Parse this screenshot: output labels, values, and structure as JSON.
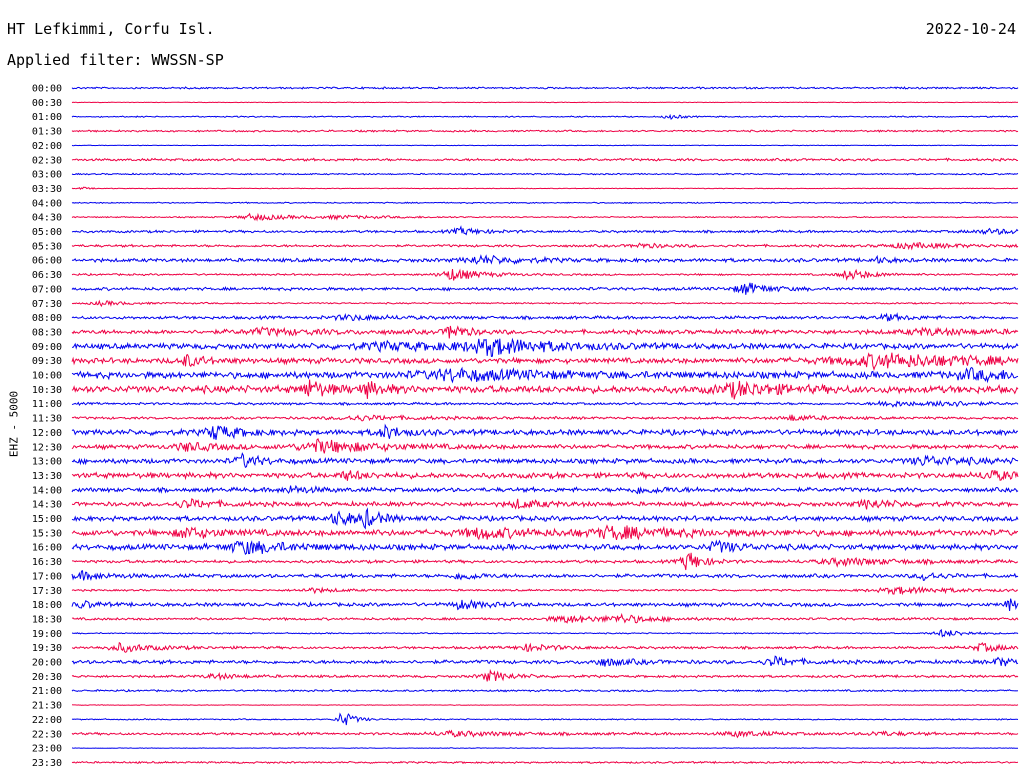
{
  "header": {
    "station": "HT Lefkimmi, Corfu Isl.",
    "date": "2022-10-24",
    "filter": "Applied filter: WWSSN-SP"
  },
  "channel_label": "EHZ - 5000",
  "colors": {
    "trace_a": "#0000ee",
    "trace_b": "#ee0044"
  },
  "chart_data": {
    "type": "line",
    "title": "HT Lefkimmi, Corfu Isl.",
    "subtitle": "Applied filter: WWSSN-SP",
    "date": "2022-10-24",
    "ylabel": "EHZ - 5000",
    "rows": [
      {
        "label": "00:00",
        "color": "blue",
        "noise": 0.15,
        "events": []
      },
      {
        "label": "00:30",
        "color": "red",
        "noise": 0.05,
        "events": []
      },
      {
        "label": "01:00",
        "color": "blue",
        "noise": 0.1,
        "events": [
          {
            "t": 0.63,
            "a": 0.45,
            "w": 0.004
          }
        ]
      },
      {
        "label": "01:30",
        "color": "red",
        "noise": 0.15,
        "events": []
      },
      {
        "label": "02:00",
        "color": "blue",
        "noise": 0.05,
        "events": []
      },
      {
        "label": "02:30",
        "color": "red",
        "noise": 0.2,
        "events": []
      },
      {
        "label": "03:00",
        "color": "blue",
        "noise": 0.12,
        "events": []
      },
      {
        "label": "03:30",
        "color": "red",
        "noise": 0.05,
        "events": [
          {
            "t": 0.01,
            "a": 0.2,
            "w": 0.003
          }
        ]
      },
      {
        "label": "04:00",
        "color": "blue",
        "noise": 0.1,
        "events": []
      },
      {
        "label": "04:30",
        "color": "red",
        "noise": 0.1,
        "events": [
          {
            "t": 0.19,
            "a": 0.5,
            "w": 0.012
          },
          {
            "t": 0.28,
            "a": 0.2,
            "w": 0.02
          }
        ]
      },
      {
        "label": "05:00",
        "color": "blue",
        "noise": 0.2,
        "events": [
          {
            "t": 0.41,
            "a": 0.5,
            "w": 0.008
          },
          {
            "t": 0.97,
            "a": 0.3,
            "w": 0.02
          }
        ]
      },
      {
        "label": "05:30",
        "color": "red",
        "noise": 0.2,
        "events": [
          {
            "t": 0.6,
            "a": 0.3,
            "w": 0.01
          },
          {
            "t": 0.88,
            "a": 0.35,
            "w": 0.02
          }
        ]
      },
      {
        "label": "06:00",
        "color": "blue",
        "noise": 0.3,
        "events": [
          {
            "t": 0.43,
            "a": 0.55,
            "w": 0.015
          },
          {
            "t": 0.85,
            "a": 0.35,
            "w": 0.006
          }
        ]
      },
      {
        "label": "06:30",
        "color": "red",
        "noise": 0.15,
        "events": [
          {
            "t": 0.4,
            "a": 0.9,
            "w": 0.01
          },
          {
            "t": 0.82,
            "a": 0.8,
            "w": 0.008
          }
        ]
      },
      {
        "label": "07:00",
        "color": "blue",
        "noise": 0.25,
        "events": [
          {
            "t": 0.71,
            "a": 0.9,
            "w": 0.008
          }
        ]
      },
      {
        "label": "07:30",
        "color": "red",
        "noise": 0.12,
        "events": [
          {
            "t": 0.03,
            "a": 0.3,
            "w": 0.01
          }
        ]
      },
      {
        "label": "08:00",
        "color": "blue",
        "noise": 0.25,
        "events": [
          {
            "t": 0.29,
            "a": 0.35,
            "w": 0.015
          },
          {
            "t": 0.86,
            "a": 0.45,
            "w": 0.008
          }
        ]
      },
      {
        "label": "08:30",
        "color": "red",
        "noise": 0.35,
        "events": [
          {
            "t": 0.4,
            "a": 1.1,
            "w": 0.005
          },
          {
            "t": 0.2,
            "a": 0.4,
            "w": 0.02
          },
          {
            "t": 0.9,
            "a": 0.4,
            "w": 0.02
          }
        ]
      },
      {
        "label": "09:00",
        "color": "blue",
        "noise": 0.45,
        "events": [
          {
            "t": 0.44,
            "a": 1.1,
            "w": 0.02
          },
          {
            "t": 0.33,
            "a": 0.45,
            "w": 0.03
          }
        ]
      },
      {
        "label": "09:30",
        "color": "red",
        "noise": 0.45,
        "events": [
          {
            "t": 0.12,
            "a": 0.8,
            "w": 0.006
          },
          {
            "t": 0.85,
            "a": 0.9,
            "w": 0.04
          }
        ]
      },
      {
        "label": "10:00",
        "color": "blue",
        "noise": 0.55,
        "events": [
          {
            "t": 0.4,
            "a": 0.7,
            "w": 0.03
          },
          {
            "t": 0.95,
            "a": 0.6,
            "w": 0.02
          }
        ]
      },
      {
        "label": "10:30",
        "color": "red",
        "noise": 0.6,
        "events": [
          {
            "t": 0.25,
            "a": 1.2,
            "w": 0.006
          },
          {
            "t": 0.31,
            "a": 0.9,
            "w": 0.006
          },
          {
            "t": 0.7,
            "a": 0.9,
            "w": 0.015
          }
        ]
      },
      {
        "label": "11:00",
        "color": "blue",
        "noise": 0.2,
        "events": [
          {
            "t": 0.86,
            "a": 0.45,
            "w": 0.01
          },
          {
            "t": 0.92,
            "a": 0.5,
            "w": 0.008
          }
        ]
      },
      {
        "label": "11:30",
        "color": "red",
        "noise": 0.2,
        "events": [
          {
            "t": 0.3,
            "a": 0.35,
            "w": 0.02
          },
          {
            "t": 0.76,
            "a": 0.4,
            "w": 0.01
          }
        ]
      },
      {
        "label": "12:00",
        "color": "blue",
        "noise": 0.45,
        "events": [
          {
            "t": 0.15,
            "a": 1.0,
            "w": 0.008
          },
          {
            "t": 0.33,
            "a": 0.9,
            "w": 0.006
          }
        ]
      },
      {
        "label": "12:30",
        "color": "red",
        "noise": 0.35,
        "events": [
          {
            "t": 0.26,
            "a": 0.9,
            "w": 0.02
          },
          {
            "t": 0.12,
            "a": 0.6,
            "w": 0.01
          }
        ]
      },
      {
        "label": "13:00",
        "color": "blue",
        "noise": 0.4,
        "events": [
          {
            "t": 0.18,
            "a": 0.9,
            "w": 0.006
          },
          {
            "t": 0.9,
            "a": 0.6,
            "w": 0.015
          }
        ]
      },
      {
        "label": "13:30",
        "color": "red",
        "noise": 0.45,
        "events": [
          {
            "t": 0.29,
            "a": 0.6,
            "w": 0.006
          },
          {
            "t": 0.97,
            "a": 0.6,
            "w": 0.01
          }
        ]
      },
      {
        "label": "14:00",
        "color": "blue",
        "noise": 0.35,
        "events": [
          {
            "t": 0.23,
            "a": 0.5,
            "w": 0.008
          },
          {
            "t": 0.6,
            "a": 0.45,
            "w": 0.01
          }
        ]
      },
      {
        "label": "14:30",
        "color": "red",
        "noise": 0.35,
        "events": [
          {
            "t": 0.12,
            "a": 0.6,
            "w": 0.01
          },
          {
            "t": 0.47,
            "a": 0.55,
            "w": 0.01
          },
          {
            "t": 0.84,
            "a": 0.6,
            "w": 0.01
          }
        ]
      },
      {
        "label": "15:00",
        "color": "blue",
        "noise": 0.4,
        "events": [
          {
            "t": 0.28,
            "a": 0.9,
            "w": 0.008
          },
          {
            "t": 0.31,
            "a": 1.0,
            "w": 0.005
          }
        ]
      },
      {
        "label": "15:30",
        "color": "red",
        "noise": 0.5,
        "events": [
          {
            "t": 0.12,
            "a": 0.7,
            "w": 0.01
          },
          {
            "t": 0.43,
            "a": 0.7,
            "w": 0.015
          },
          {
            "t": 0.57,
            "a": 0.8,
            "w": 0.02
          }
        ]
      },
      {
        "label": "16:00",
        "color": "blue",
        "noise": 0.45,
        "events": [
          {
            "t": 0.18,
            "a": 0.9,
            "w": 0.015
          },
          {
            "t": 0.68,
            "a": 0.8,
            "w": 0.008
          }
        ]
      },
      {
        "label": "16:30",
        "color": "red",
        "noise": 0.25,
        "events": [
          {
            "t": 0.65,
            "a": 1.6,
            "w": 0.005
          },
          {
            "t": 0.81,
            "a": 0.5,
            "w": 0.02
          }
        ]
      },
      {
        "label": "17:00",
        "color": "blue",
        "noise": 0.3,
        "events": [
          {
            "t": 0.01,
            "a": 0.5,
            "w": 0.01
          },
          {
            "t": 0.41,
            "a": 0.6,
            "w": 0.006
          },
          {
            "t": 0.9,
            "a": 0.6,
            "w": 0.006
          }
        ]
      },
      {
        "label": "17:30",
        "color": "red",
        "noise": 0.15,
        "events": [
          {
            "t": 0.25,
            "a": 0.35,
            "w": 0.01
          },
          {
            "t": 0.87,
            "a": 0.5,
            "w": 0.02
          }
        ]
      },
      {
        "label": "18:00",
        "color": "blue",
        "noise": 0.3,
        "events": [
          {
            "t": 0.01,
            "a": 0.5,
            "w": 0.005
          },
          {
            "t": 0.41,
            "a": 0.65,
            "w": 0.008
          },
          {
            "t": 0.99,
            "a": 0.8,
            "w": 0.004
          }
        ]
      },
      {
        "label": "18:30",
        "color": "red",
        "noise": 0.2,
        "events": [
          {
            "t": 0.52,
            "a": 0.5,
            "w": 0.015
          },
          {
            "t": 0.58,
            "a": 0.5,
            "w": 0.01
          }
        ]
      },
      {
        "label": "19:00",
        "color": "blue",
        "noise": 0.1,
        "events": [
          {
            "t": 0.92,
            "a": 0.55,
            "w": 0.008
          }
        ]
      },
      {
        "label": "19:30",
        "color": "red",
        "noise": 0.2,
        "events": [
          {
            "t": 0.05,
            "a": 0.6,
            "w": 0.012
          },
          {
            "t": 0.48,
            "a": 0.45,
            "w": 0.012
          },
          {
            "t": 0.96,
            "a": 0.6,
            "w": 0.008
          }
        ]
      },
      {
        "label": "20:00",
        "color": "blue",
        "noise": 0.3,
        "events": [
          {
            "t": 0.56,
            "a": 0.5,
            "w": 0.01
          },
          {
            "t": 0.74,
            "a": 0.7,
            "w": 0.008
          },
          {
            "t": 0.98,
            "a": 0.6,
            "w": 0.006
          }
        ]
      },
      {
        "label": "20:30",
        "color": "red",
        "noise": 0.2,
        "events": [
          {
            "t": 0.44,
            "a": 0.75,
            "w": 0.008
          },
          {
            "t": 0.15,
            "a": 0.35,
            "w": 0.01
          }
        ]
      },
      {
        "label": "21:00",
        "color": "blue",
        "noise": 0.15,
        "events": []
      },
      {
        "label": "21:30",
        "color": "red",
        "noise": 0.05,
        "events": []
      },
      {
        "label": "22:00",
        "color": "blue",
        "noise": 0.1,
        "events": [
          {
            "t": 0.285,
            "a": 1.3,
            "w": 0.004
          }
        ]
      },
      {
        "label": "22:30",
        "color": "red",
        "noise": 0.2,
        "events": [
          {
            "t": 0.4,
            "a": 0.35,
            "w": 0.02
          },
          {
            "t": 0.7,
            "a": 0.4,
            "w": 0.012
          },
          {
            "t": 0.85,
            "a": 0.3,
            "w": 0.01
          }
        ]
      },
      {
        "label": "23:00",
        "color": "blue",
        "noise": 0.05,
        "events": []
      },
      {
        "label": "23:30",
        "color": "red",
        "noise": 0.15,
        "events": []
      }
    ]
  }
}
